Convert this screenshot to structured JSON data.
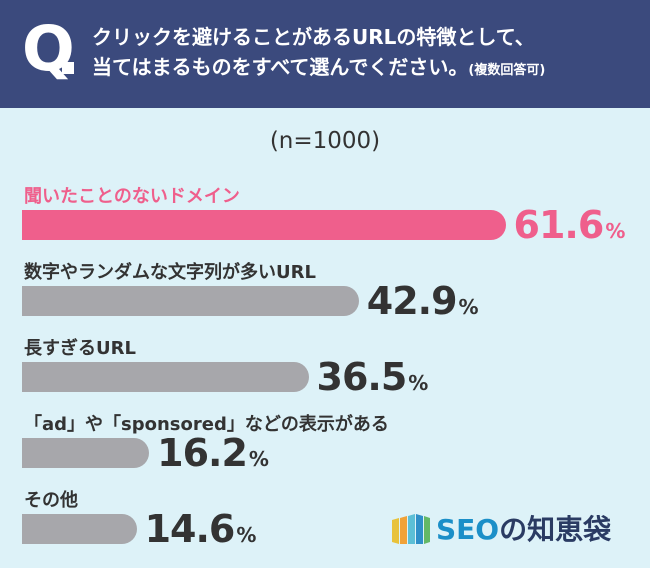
{
  "header": {
    "q_letter": "Q",
    "question_line1": "クリックを避けることがあるURLの特徴として、",
    "question_line2": "当てはまるものをすべて選んでください。",
    "question_note": "(複数回答可)"
  },
  "sample_size": "(n=1000)",
  "colors": {
    "header_bg": "#3b4a7d",
    "panel_bg": "#ddf2f8",
    "highlight": "#ef5f8c",
    "bar_default": "#a7a7ab",
    "text": "#333333"
  },
  "chart_data": {
    "type": "bar",
    "orientation": "horizontal",
    "categories": [
      "聞いたことのないドメイン",
      "数字やランダムな文字列が多いURL",
      "長すぎるURL",
      "「ad」や「sponsored」などの表示がある",
      "その他"
    ],
    "values": [
      61.6,
      42.9,
      36.5,
      16.2,
      14.6
    ],
    "value_suffix": "%",
    "highlight_index": 0,
    "xlim": [
      0,
      100
    ]
  },
  "logo": {
    "text_seo": "SEO",
    "text_rest": "の知恵袋",
    "icon": "book-stack-icon"
  }
}
